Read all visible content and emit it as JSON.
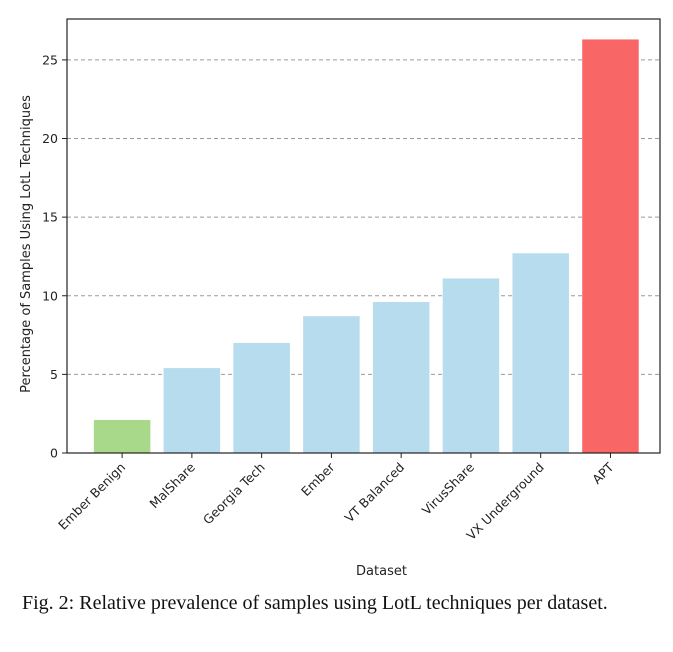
{
  "caption": "Fig. 2: Relative prevalence of samples using LotL techniques per dataset.",
  "colors": {
    "benign": "#a8d98a",
    "malware": "#b6dcee",
    "apt": "#f96666",
    "grid": "#9a9a9a",
    "axis": "#222222"
  },
  "chart_data": {
    "type": "bar",
    "xlabel": "Dataset",
    "ylabel": "Percentage of Samples Using LotL Techniques",
    "categories": [
      "Ember Benign",
      "MalShare",
      "Georgia Tech",
      "Ember",
      "VT Balanced",
      "VirusShare",
      "VX Underground",
      "APT"
    ],
    "values": [
      2.1,
      5.4,
      7.0,
      8.7,
      9.6,
      11.1,
      12.7,
      26.3
    ],
    "bar_colors": [
      "benign",
      "malware",
      "malware",
      "malware",
      "malware",
      "malware",
      "malware",
      "apt"
    ],
    "yticks": [
      0,
      5,
      10,
      15,
      20,
      25
    ],
    "ylim": [
      0,
      27.6
    ],
    "grid": "horizontal-dashed"
  }
}
